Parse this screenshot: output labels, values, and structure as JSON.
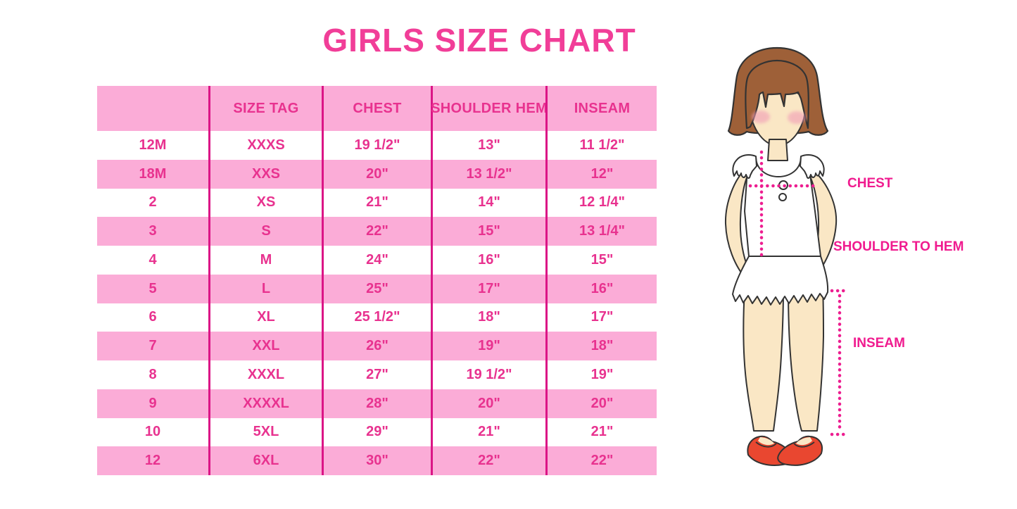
{
  "title": {
    "text": "GIRLS SIZE CHART"
  },
  "colors": {
    "title": "#F13E98",
    "band_pink": "#FBACD7",
    "grid_line": "#DB1586",
    "table_text": "#E8328F",
    "label_magenta": "#F01B8F",
    "dotted_line": "#ED1E90",
    "hair_brown": "#9E6038",
    "skin": "#FAE7C5",
    "blush": "#F19CB6",
    "shoe_red": "#E94730",
    "outline": "#333333"
  },
  "figure": {
    "labels": {
      "chest": "CHEST",
      "shoulder_to_hem": "SHOULDER TO HEM",
      "inseam": "INSEAM"
    }
  },
  "chart_data": {
    "type": "table",
    "title": "GIRLS SIZE CHART",
    "columns": [
      "",
      "SIZE TAG",
      "CHEST",
      "SHOULDER HEM",
      "INSEAM"
    ],
    "rows": [
      [
        "12M",
        "XXXS",
        "19 1/2\"",
        "13\"",
        "11 1/2\""
      ],
      [
        "18M",
        "XXS",
        "20\"",
        "13 1/2\"",
        "12\""
      ],
      [
        "2",
        "XS",
        "21\"",
        "14\"",
        "12 1/4\""
      ],
      [
        "3",
        "S",
        "22\"",
        "15\"",
        "13 1/4\""
      ],
      [
        "4",
        "M",
        "24\"",
        "16\"",
        "15\""
      ],
      [
        "5",
        "L",
        "25\"",
        "17\"",
        "16\""
      ],
      [
        "6",
        "XL",
        "25 1/2\"",
        "18\"",
        "17\""
      ],
      [
        "7",
        "XXL",
        "26\"",
        "19\"",
        "18\""
      ],
      [
        "8",
        "XXXL",
        "27\"",
        "19 1/2\"",
        "19\""
      ],
      [
        "9",
        "XXXXL",
        "28\"",
        "20\"",
        "20\""
      ],
      [
        "10",
        "5XL",
        "29\"",
        "21\"",
        "21\""
      ],
      [
        "12",
        "6XL",
        "30\"",
        "22\"",
        "22\""
      ]
    ]
  }
}
